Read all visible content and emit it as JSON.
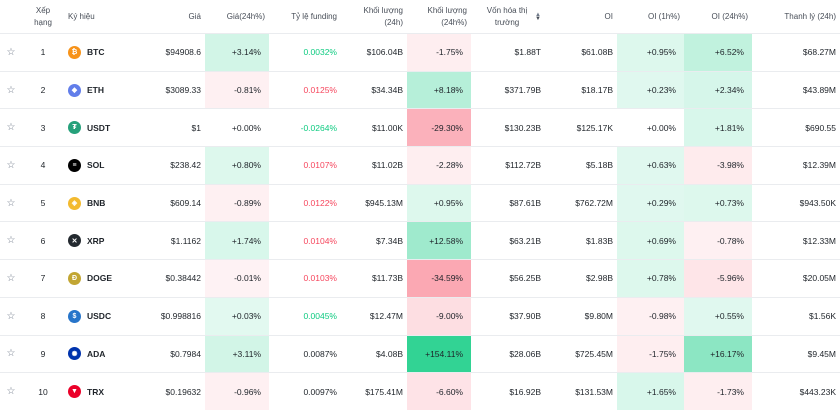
{
  "headers": {
    "rank": "Xếp hạng",
    "symbol": "Ký hiệu",
    "price": "Giá",
    "price_change": "Giá(24h%)",
    "funding": "Tỷ lệ funding",
    "volume": "Khối lượng (24h)",
    "volume_change": "Khối lượng (24h%)",
    "market_cap": "Vốn hóa thị trường",
    "oi": "OI",
    "oi_1h": "OI (1h%)",
    "oi_24h": "OI (24h%)",
    "liquidation": "Thanh lý (24h)"
  },
  "rows": [
    {
      "rank": "1",
      "symbol": "BTC",
      "price": "$94908.6",
      "price_change": "+3.14%",
      "funding": "0.0032%",
      "volume": "$106.04B",
      "volume_change": "-1.75%",
      "market_cap": "$1.88T",
      "oi": "$61.08B",
      "oi_1h": "+0.95%",
      "oi_24h": "+6.52%",
      "liquidation": "$68.27M"
    },
    {
      "rank": "2",
      "symbol": "ETH",
      "price": "$3089.33",
      "price_change": "-0.81%",
      "funding": "0.0125%",
      "volume": "$34.34B",
      "volume_change": "+8.18%",
      "market_cap": "$371.79B",
      "oi": "$18.17B",
      "oi_1h": "+0.23%",
      "oi_24h": "+2.34%",
      "liquidation": "$43.89M"
    },
    {
      "rank": "3",
      "symbol": "USDT",
      "price": "$1",
      "price_change": "+0.00%",
      "funding": "-0.0264%",
      "volume": "$11.00K",
      "volume_change": "-29.30%",
      "market_cap": "$130.23B",
      "oi": "$125.17K",
      "oi_1h": "+0.00%",
      "oi_24h": "+1.81%",
      "liquidation": "$690.55"
    },
    {
      "rank": "4",
      "symbol": "SOL",
      "price": "$238.42",
      "price_change": "+0.80%",
      "funding": "0.0107%",
      "volume": "$11.02B",
      "volume_change": "-2.28%",
      "market_cap": "$112.72B",
      "oi": "$5.18B",
      "oi_1h": "+0.63%",
      "oi_24h": "-3.98%",
      "liquidation": "$12.39M"
    },
    {
      "rank": "5",
      "symbol": "BNB",
      "price": "$609.14",
      "price_change": "-0.89%",
      "funding": "0.0122%",
      "volume": "$945.13M",
      "volume_change": "+0.95%",
      "market_cap": "$87.61B",
      "oi": "$762.72M",
      "oi_1h": "+0.29%",
      "oi_24h": "+0.73%",
      "liquidation": "$943.50K"
    },
    {
      "rank": "6",
      "symbol": "XRP",
      "price": "$1.1162",
      "price_change": "+1.74%",
      "funding": "0.0104%",
      "volume": "$7.34B",
      "volume_change": "+12.58%",
      "market_cap": "$63.21B",
      "oi": "$1.83B",
      "oi_1h": "+0.69%",
      "oi_24h": "-0.78%",
      "liquidation": "$12.33M"
    },
    {
      "rank": "7",
      "symbol": "DOGE",
      "price": "$0.38442",
      "price_change": "-0.01%",
      "funding": "0.0103%",
      "volume": "$11.73B",
      "volume_change": "-34.59%",
      "market_cap": "$56.25B",
      "oi": "$2.98B",
      "oi_1h": "+0.78%",
      "oi_24h": "-5.96%",
      "liquidation": "$20.05M"
    },
    {
      "rank": "8",
      "symbol": "USDC",
      "price": "$0.998816",
      "price_change": "+0.03%",
      "funding": "0.0045%",
      "volume": "$12.47M",
      "volume_change": "-9.00%",
      "market_cap": "$37.90B",
      "oi": "$9.80M",
      "oi_1h": "-0.98%",
      "oi_24h": "+0.55%",
      "liquidation": "$1.56K"
    },
    {
      "rank": "9",
      "symbol": "ADA",
      "price": "$0.7984",
      "price_change": "+3.11%",
      "funding": "0.0087%",
      "volume": "$4.08B",
      "volume_change": "+154.11%",
      "market_cap": "$28.06B",
      "oi": "$725.45M",
      "oi_1h": "-1.75%",
      "oi_24h": "+16.17%",
      "liquidation": "$9.45M"
    },
    {
      "rank": "10",
      "symbol": "TRX",
      "price": "$0.19632",
      "price_change": "-0.96%",
      "funding": "0.0097%",
      "volume": "$175.41M",
      "volume_change": "-6.60%",
      "market_cap": "$16.92B",
      "oi": "$131.53M",
      "oi_1h": "+1.65%",
      "oi_24h": "-1.73%",
      "liquidation": "$443.23K"
    }
  ],
  "icons": {
    "BTC": {
      "name": "bitcoin-icon",
      "glyph": "₿",
      "color": "#f7931a"
    },
    "ETH": {
      "name": "ethereum-icon",
      "glyph": "◆",
      "color": "#627eea"
    },
    "USDT": {
      "name": "tether-icon",
      "glyph": "₮",
      "color": "#26a17b"
    },
    "SOL": {
      "name": "solana-icon",
      "glyph": "≡",
      "color": "#000000"
    },
    "BNB": {
      "name": "bnb-icon",
      "glyph": "◈",
      "color": "#f3ba2f"
    },
    "XRP": {
      "name": "xrp-icon",
      "glyph": "✕",
      "color": "#23292f"
    },
    "DOGE": {
      "name": "dogecoin-icon",
      "glyph": "Ð",
      "color": "#c2a633"
    },
    "USDC": {
      "name": "usdc-icon",
      "glyph": "$",
      "color": "#2775ca"
    },
    "ADA": {
      "name": "cardano-icon",
      "glyph": "✺",
      "color": "#0033ad"
    },
    "TRX": {
      "name": "tron-icon",
      "glyph": "▼",
      "color": "#eb0029"
    }
  },
  "colors": {
    "positive": "#0ecb81",
    "negative": "#f6465d"
  }
}
